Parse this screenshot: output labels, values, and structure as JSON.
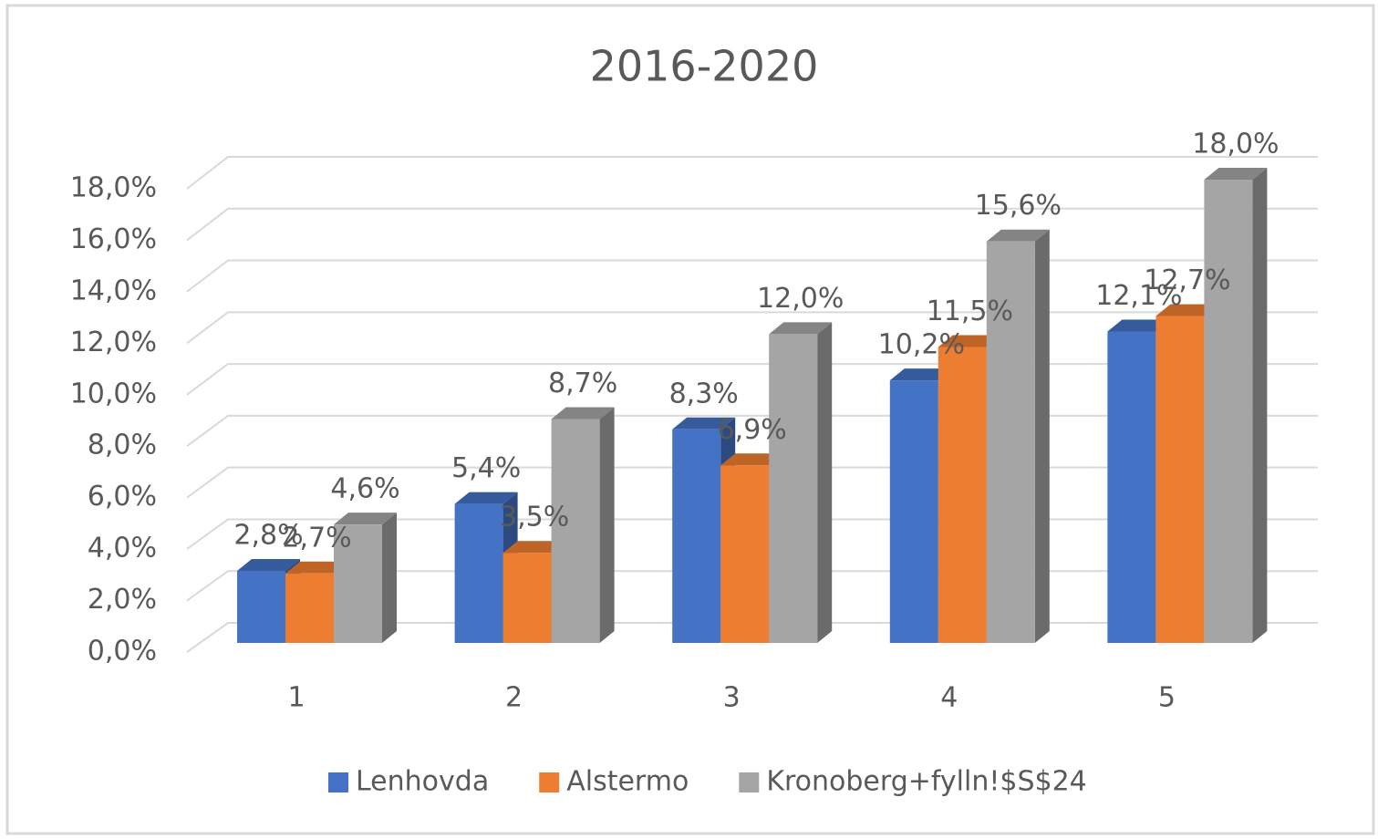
{
  "chart_data": {
    "type": "bar3d",
    "title": "2016-2020",
    "categories": [
      "1",
      "2",
      "3",
      "4",
      "5"
    ],
    "series": [
      {
        "name": "Lenhovda",
        "color": "#4472c4",
        "values": [
          2.8,
          5.4,
          8.3,
          10.2,
          12.1
        ],
        "value_labels": [
          "2,8%",
          "5,4%",
          "8,3%",
          "10,2%",
          "12,1%"
        ]
      },
      {
        "name": "Alstermo",
        "color": "#ed7d31",
        "values": [
          2.7,
          3.5,
          6.9,
          11.5,
          12.7
        ],
        "value_labels": [
          "2,7%",
          "3,5%",
          "6,9%",
          "11,5%",
          "12,7%"
        ]
      },
      {
        "name": "Kronoberg+fylln!$S$24",
        "color": "#a5a5a5",
        "values": [
          4.6,
          8.7,
          12.0,
          15.6,
          18.0
        ],
        "value_labels": [
          "4,6%",
          "8,7%",
          "12,0%",
          "15,6%",
          "18,0%"
        ]
      }
    ],
    "ylim": [
      0,
      18
    ],
    "yticks": [
      {
        "value": 0,
        "label": "0,0%"
      },
      {
        "value": 2,
        "label": "2,0%"
      },
      {
        "value": 4,
        "label": "4,0%"
      },
      {
        "value": 6,
        "label": "6,0%"
      },
      {
        "value": 8,
        "label": "8,0%"
      },
      {
        "value": 10,
        "label": "10,0%"
      },
      {
        "value": 12,
        "label": "12,0%"
      },
      {
        "value": 14,
        "label": "14,0%"
      },
      {
        "value": 16,
        "label": "16,0%"
      },
      {
        "value": 18,
        "label": "18,0%"
      }
    ],
    "grid": true,
    "legend": "bottom"
  }
}
